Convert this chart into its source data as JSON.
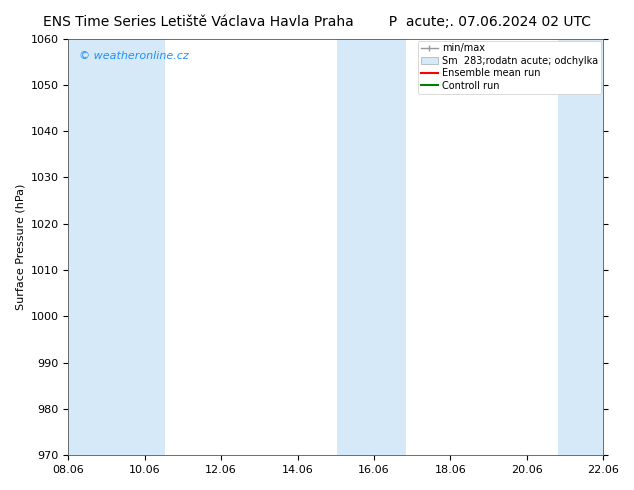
{
  "title_left": "ENS Time Series Letiště Václava Havla Praha",
  "title_right": "P  acute;. 07.06.2024 02 UTC",
  "ylabel": "Surface Pressure (hPa)",
  "ylim": [
    970,
    1060
  ],
  "yticks": [
    970,
    980,
    990,
    1000,
    1010,
    1020,
    1030,
    1040,
    1050,
    1060
  ],
  "xtick_labels": [
    "08.06",
    "10.06",
    "12.06",
    "14.06",
    "16.06",
    "18.06",
    "20.06",
    "22.06"
  ],
  "xlim": [
    0.0,
    15.5
  ],
  "bg_color": "#ffffff",
  "plot_bg_color": "#ffffff",
  "shaded_bands": [
    {
      "x_start": 0.0,
      "x_end": 2.8,
      "color": "#d6e9f8"
    },
    {
      "x_start": 7.8,
      "x_end": 9.8,
      "color": "#d6e9f8"
    },
    {
      "x_start": 14.2,
      "x_end": 15.5,
      "color": "#d6e9f8"
    }
  ],
  "watermark": "© weatheronline.cz",
  "watermark_color": "#1E90FF",
  "legend_labels": [
    "min/max",
    "Sm  283;rodatn acute; odchylka",
    "Ensemble mean run",
    "Controll run"
  ],
  "legend_colors": [
    "#aaaaaa",
    "#d6e9f8",
    "#ff0000",
    "#008000"
  ],
  "title_fontsize": 10,
  "tick_fontsize": 8,
  "ylabel_fontsize": 8,
  "watermark_fontsize": 8
}
